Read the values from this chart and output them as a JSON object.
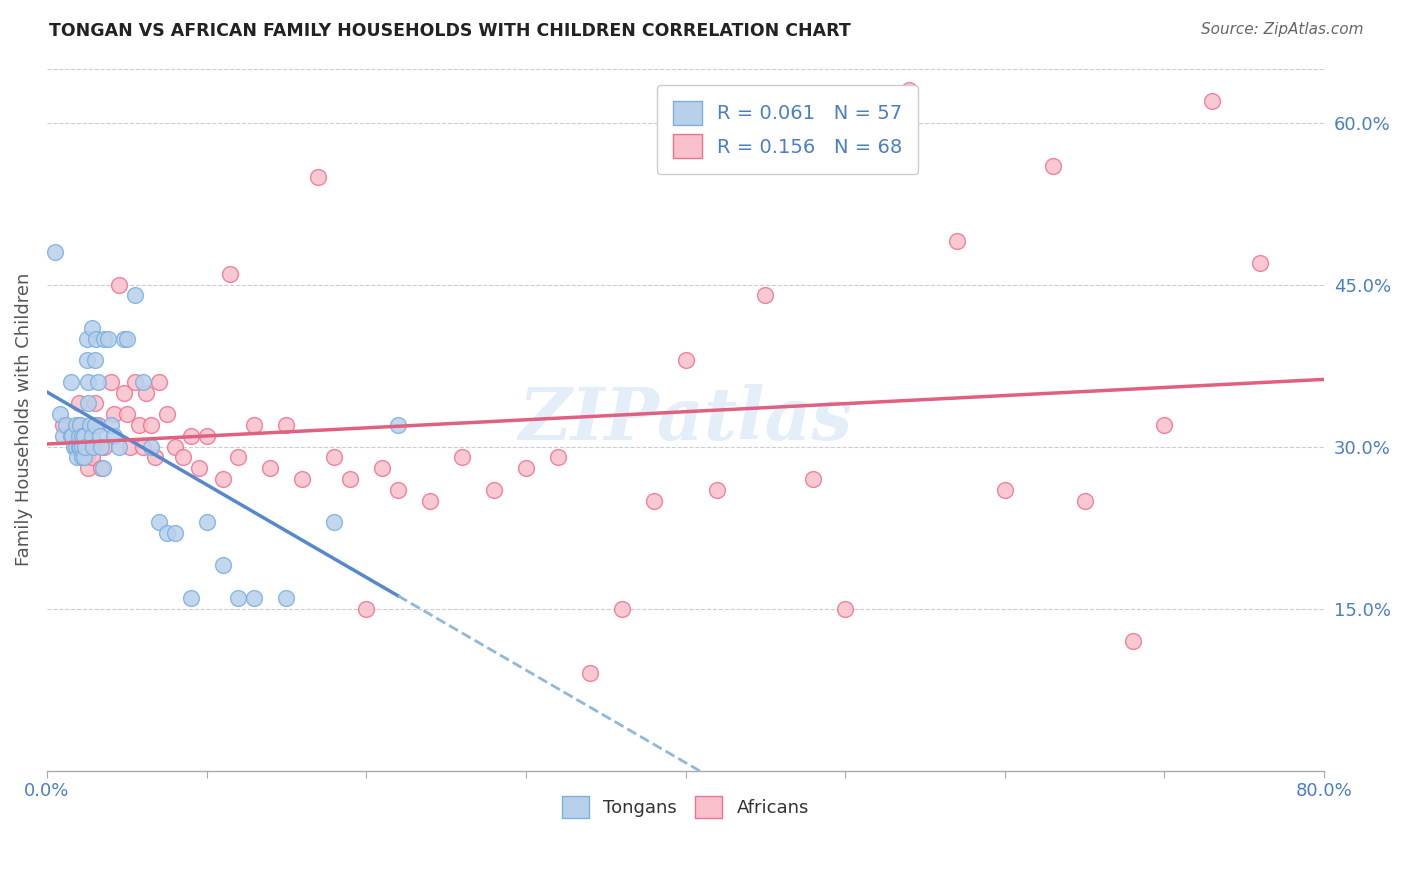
{
  "title": "TONGAN VS AFRICAN FAMILY HOUSEHOLDS WITH CHILDREN CORRELATION CHART",
  "source": "Source: ZipAtlas.com",
  "ylabel": "Family Households with Children",
  "x_min": 0.0,
  "x_max": 0.8,
  "y_min": 0.0,
  "y_max": 0.65,
  "color_tongan_fill": "#b8d0ea",
  "color_tongan_edge": "#7aafe0",
  "color_african_fill": "#f9c0cc",
  "color_african_edge": "#f07090",
  "color_tongan_line": "#5588cc",
  "color_african_line": "#e06080",
  "color_tongan_dashed": "#90b8d8",
  "watermark": "ZIPatlas",
  "tongan_x": [
    0.005,
    0.008,
    0.01,
    0.012,
    0.015,
    0.015,
    0.016,
    0.017,
    0.018,
    0.018,
    0.019,
    0.02,
    0.02,
    0.021,
    0.021,
    0.022,
    0.022,
    0.022,
    0.023,
    0.023,
    0.024,
    0.025,
    0.025,
    0.026,
    0.026,
    0.027,
    0.028,
    0.028,
    0.029,
    0.03,
    0.03,
    0.031,
    0.032,
    0.033,
    0.034,
    0.035,
    0.036,
    0.038,
    0.04,
    0.042,
    0.045,
    0.048,
    0.05,
    0.055,
    0.06,
    0.065,
    0.07,
    0.075,
    0.08,
    0.09,
    0.1,
    0.11,
    0.12,
    0.13,
    0.15,
    0.18,
    0.22
  ],
  "tongan_y": [
    0.48,
    0.33,
    0.31,
    0.32,
    0.36,
    0.31,
    0.31,
    0.3,
    0.32,
    0.3,
    0.29,
    0.31,
    0.3,
    0.32,
    0.3,
    0.31,
    0.3,
    0.29,
    0.31,
    0.29,
    0.3,
    0.4,
    0.38,
    0.36,
    0.34,
    0.32,
    0.41,
    0.31,
    0.3,
    0.38,
    0.32,
    0.4,
    0.36,
    0.31,
    0.3,
    0.28,
    0.4,
    0.4,
    0.32,
    0.31,
    0.3,
    0.4,
    0.4,
    0.44,
    0.36,
    0.3,
    0.23,
    0.22,
    0.22,
    0.16,
    0.23,
    0.19,
    0.16,
    0.16,
    0.16,
    0.23,
    0.32
  ],
  "african_x": [
    0.01,
    0.015,
    0.018,
    0.02,
    0.02,
    0.022,
    0.024,
    0.025,
    0.026,
    0.028,
    0.03,
    0.032,
    0.034,
    0.036,
    0.04,
    0.042,
    0.045,
    0.048,
    0.05,
    0.052,
    0.055,
    0.058,
    0.06,
    0.062,
    0.065,
    0.068,
    0.07,
    0.075,
    0.08,
    0.085,
    0.09,
    0.095,
    0.1,
    0.11,
    0.115,
    0.12,
    0.13,
    0.14,
    0.15,
    0.16,
    0.17,
    0.18,
    0.19,
    0.2,
    0.21,
    0.22,
    0.24,
    0.26,
    0.28,
    0.3,
    0.32,
    0.34,
    0.36,
    0.38,
    0.4,
    0.42,
    0.45,
    0.48,
    0.5,
    0.54,
    0.57,
    0.6,
    0.63,
    0.65,
    0.68,
    0.7,
    0.73,
    0.76
  ],
  "african_y": [
    0.32,
    0.31,
    0.3,
    0.34,
    0.32,
    0.31,
    0.3,
    0.29,
    0.28,
    0.29,
    0.34,
    0.32,
    0.28,
    0.3,
    0.36,
    0.33,
    0.45,
    0.35,
    0.33,
    0.3,
    0.36,
    0.32,
    0.3,
    0.35,
    0.32,
    0.29,
    0.36,
    0.33,
    0.3,
    0.29,
    0.31,
    0.28,
    0.31,
    0.27,
    0.46,
    0.29,
    0.32,
    0.28,
    0.32,
    0.27,
    0.55,
    0.29,
    0.27,
    0.15,
    0.28,
    0.26,
    0.25,
    0.29,
    0.26,
    0.28,
    0.29,
    0.09,
    0.15,
    0.25,
    0.38,
    0.26,
    0.44,
    0.27,
    0.15,
    0.63,
    0.49,
    0.26,
    0.56,
    0.25,
    0.12,
    0.32,
    0.62,
    0.47
  ]
}
